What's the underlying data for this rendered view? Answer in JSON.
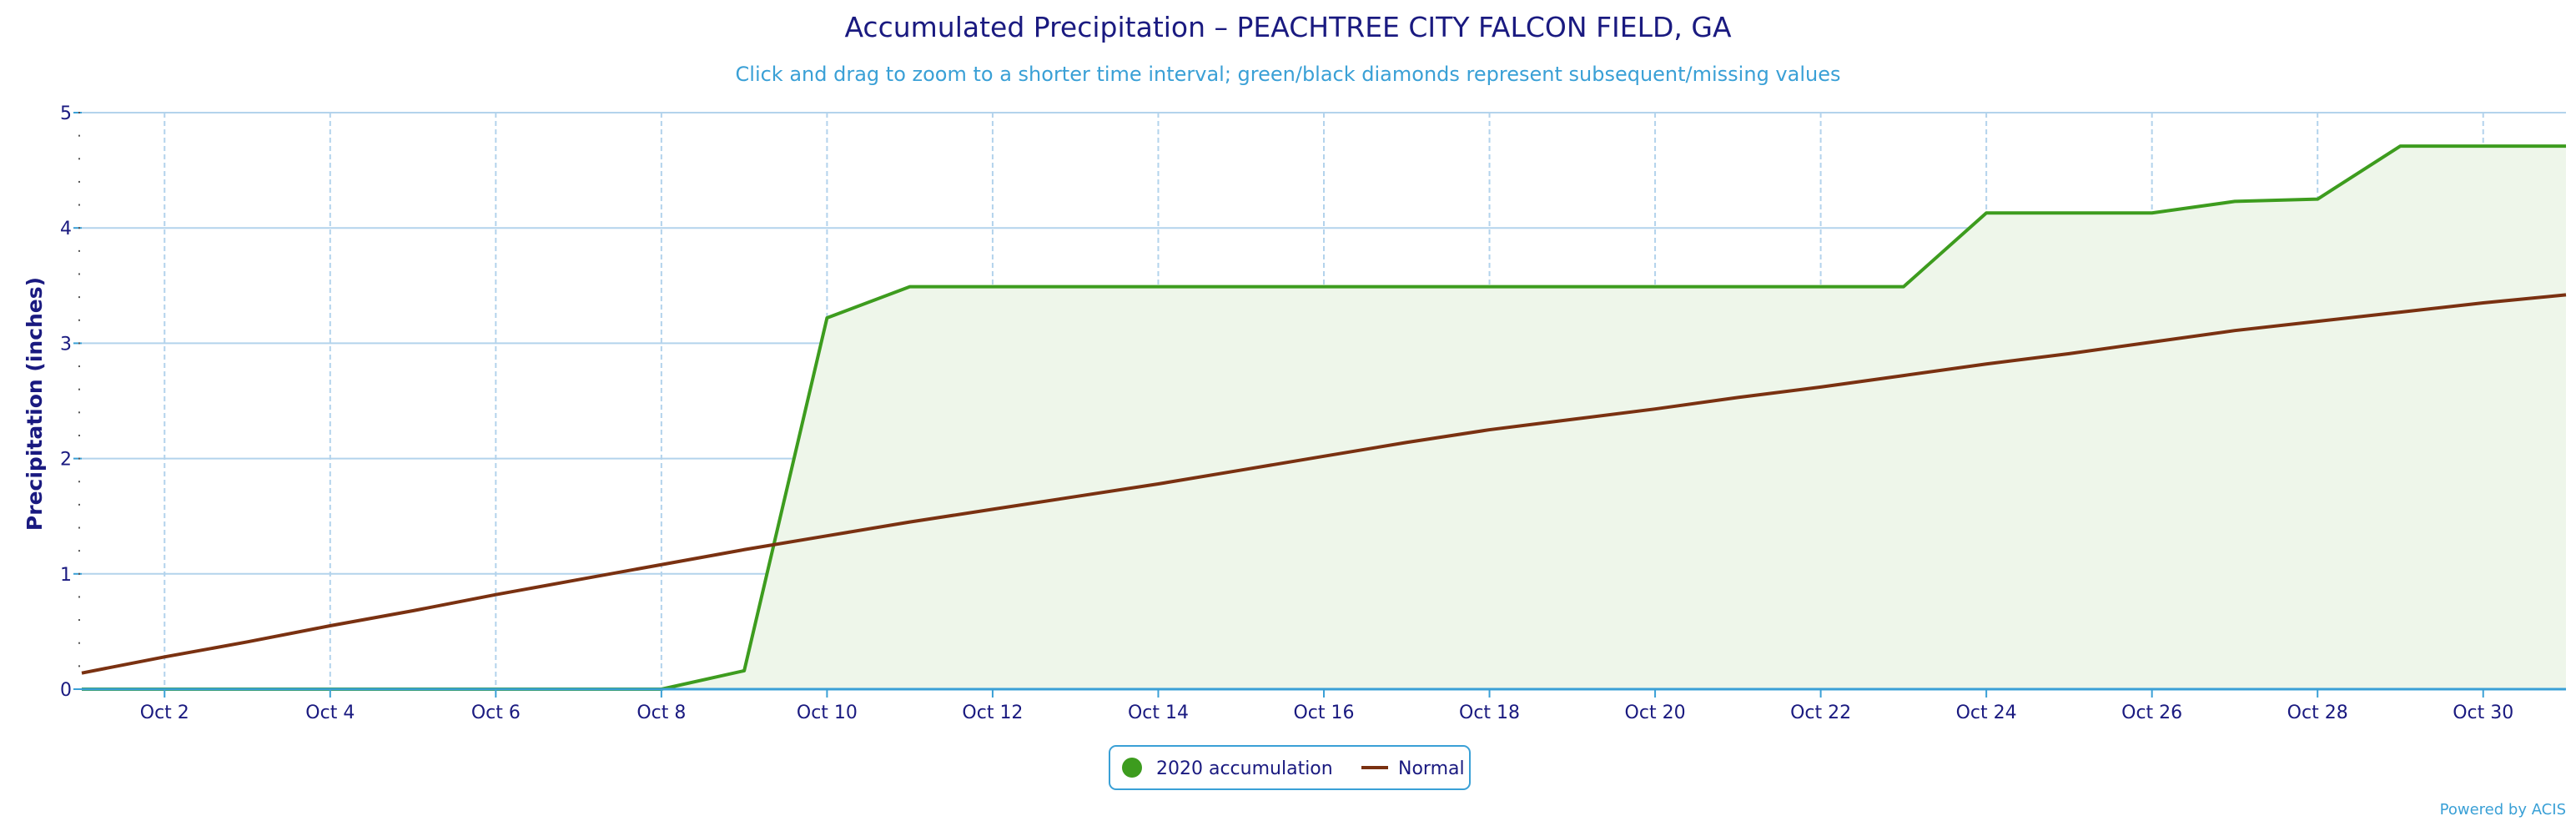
{
  "chart_data": {
    "type": "area",
    "title": "Accumulated Precipitation – PEACHTREE CITY FALCON FIELD, GA",
    "subtitle": "Click and drag to zoom to a shorter time interval; green/black diamonds represent subsequent/missing values",
    "xlabel": "",
    "ylabel": "Precipitation (inches)",
    "xlim": [
      1,
      31
    ],
    "ylim": [
      0,
      5
    ],
    "yticks": [
      0,
      1,
      2,
      3,
      4,
      5
    ],
    "xticks": [
      2,
      4,
      6,
      8,
      10,
      12,
      14,
      16,
      18,
      20,
      22,
      24,
      26,
      28,
      30
    ],
    "xtick_labels": [
      "Oct 2",
      "Oct 4",
      "Oct 6",
      "Oct 8",
      "Oct 10",
      "Oct 12",
      "Oct 14",
      "Oct 16",
      "Oct 18",
      "Oct 20",
      "Oct 22",
      "Oct 24",
      "Oct 26",
      "Oct 28",
      "Oct 30"
    ],
    "grid": true,
    "legend": "bottom-center",
    "series": [
      {
        "name": "2020 accumulation",
        "style": "area",
        "color": "#3d9c1e",
        "fill": "#eef6ea",
        "x": [
          1,
          2,
          3,
          4,
          5,
          6,
          7,
          8,
          9,
          10,
          11,
          12,
          13,
          14,
          15,
          16,
          17,
          18,
          19,
          20,
          21,
          22,
          23,
          24,
          25,
          26,
          27,
          28,
          29,
          30,
          31
        ],
        "values": [
          0,
          0,
          0,
          0,
          0,
          0,
          0,
          0,
          0.16,
          3.22,
          3.49,
          3.49,
          3.49,
          3.49,
          3.49,
          3.49,
          3.49,
          3.49,
          3.49,
          3.49,
          3.49,
          3.49,
          3.49,
          4.13,
          4.13,
          4.13,
          4.23,
          4.25,
          4.71,
          4.71,
          4.71
        ]
      },
      {
        "name": "Normal",
        "style": "line",
        "color": "#7a3111",
        "x": [
          1,
          2,
          3,
          4,
          5,
          6,
          7,
          8,
          9,
          10,
          11,
          12,
          13,
          14,
          15,
          16,
          17,
          18,
          19,
          20,
          21,
          22,
          23,
          24,
          25,
          26,
          27,
          28,
          29,
          30,
          31
        ],
        "values": [
          0.14,
          0.28,
          0.41,
          0.55,
          0.68,
          0.82,
          0.95,
          1.08,
          1.21,
          1.33,
          1.45,
          1.56,
          1.67,
          1.78,
          1.9,
          2.02,
          2.14,
          2.25,
          2.34,
          2.43,
          2.53,
          2.62,
          2.72,
          2.82,
          2.91,
          3.01,
          3.11,
          3.19,
          3.27,
          3.35,
          3.42
        ]
      }
    ]
  },
  "credit": "Powered by ACIS",
  "colors": {
    "grid": "#b3d3ec",
    "axis": "#3aa0d6",
    "legend_border": "#3aa0d6"
  }
}
